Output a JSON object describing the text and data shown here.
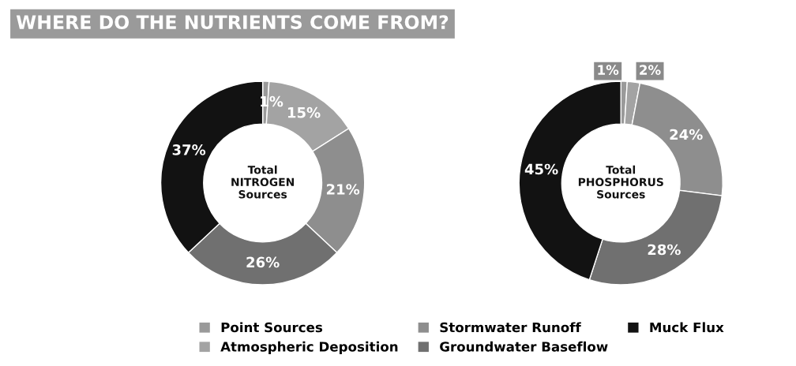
{
  "chart_data": [
    {
      "type": "donut",
      "title": "WHERE DO THE NUTRIENTS COME FROM?",
      "annotations": [
        "Total\nNITROGEN\nSources"
      ],
      "categories": [
        "Point Sources",
        "Atmospheric Deposition",
        "Stormwater Runoff",
        "Groundwater Baseflow",
        "Muck Flux"
      ],
      "values": [
        1,
        15,
        21,
        26,
        37
      ],
      "value_labels": [
        "1%",
        "15%",
        "21%",
        "26%",
        "37%"
      ],
      "colors": [
        "#9a9a9a",
        "#a3a3a3",
        "#8e8e8e",
        "#707070",
        "#121212"
      ],
      "legend": "bottom"
    },
    {
      "type": "donut",
      "annotations": [
        "Total\nPHOSPHORUS\nSources"
      ],
      "categories": [
        null,
        null,
        null,
        null,
        null
      ],
      "values": [
        1,
        2,
        24,
        28,
        45
      ],
      "value_labels": [
        "1%",
        "2%",
        "24%",
        "28%",
        "45%"
      ],
      "colors": [
        "#9a9a9a",
        "#a3a3a3",
        "#8e8e8e",
        "#707070",
        "#121212"
      ]
    }
  ]
}
